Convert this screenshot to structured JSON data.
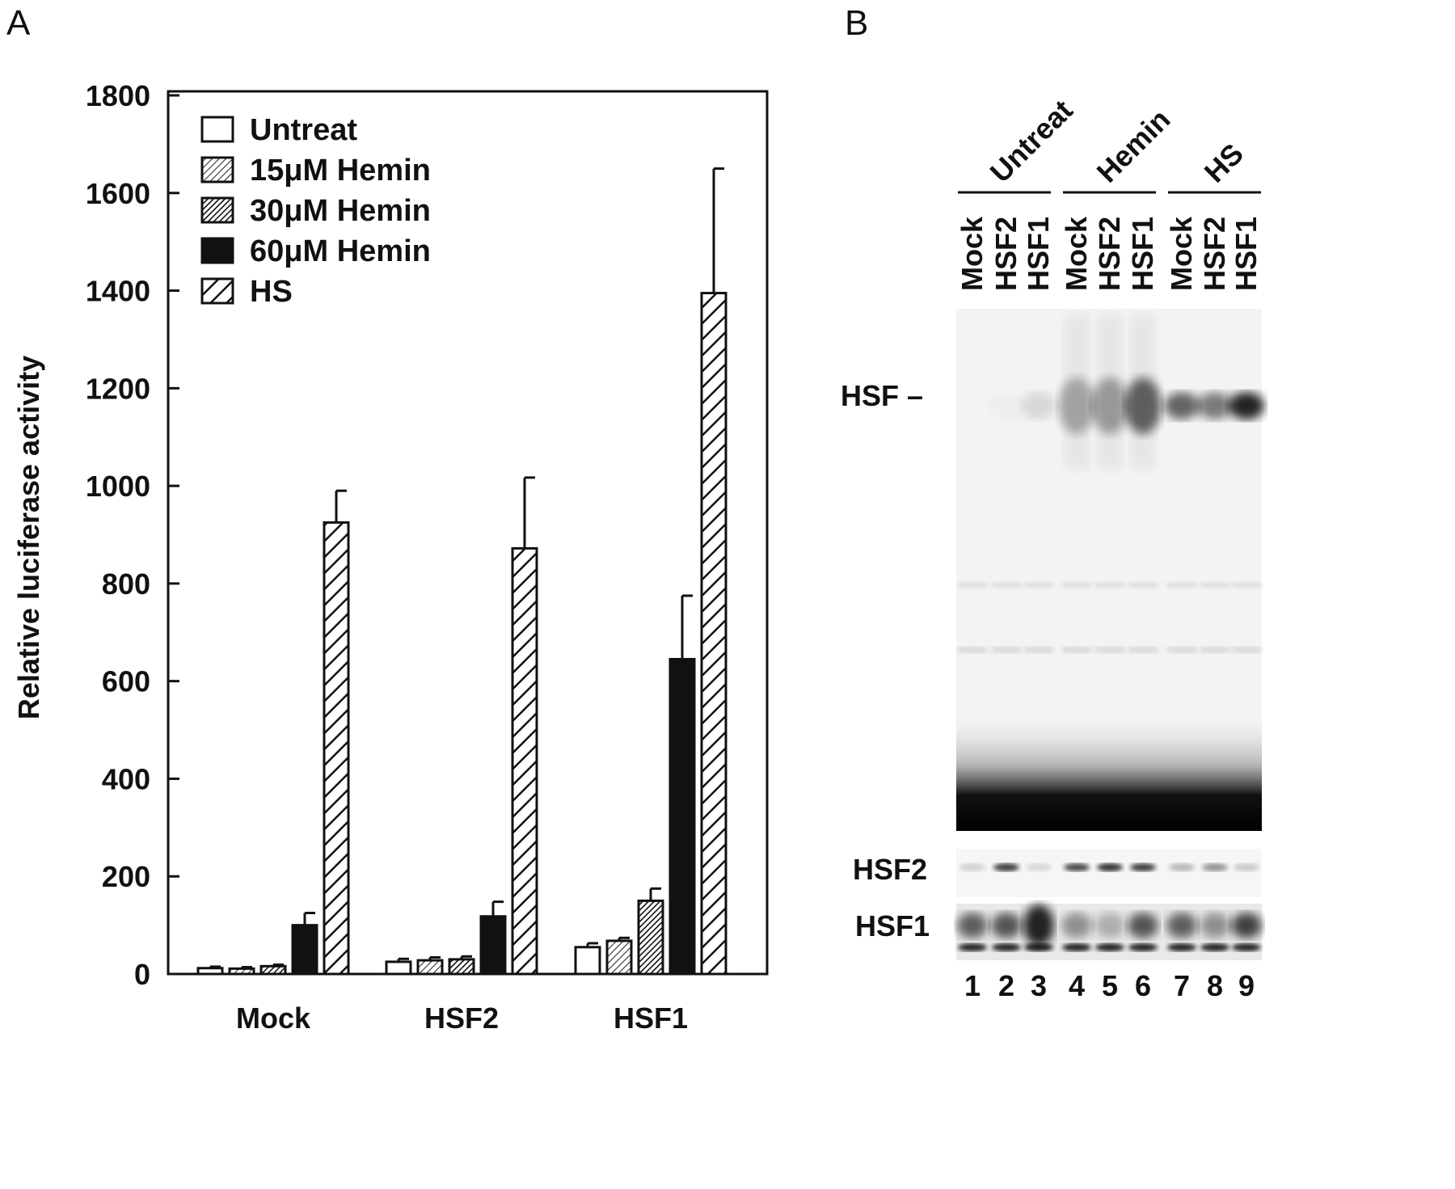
{
  "panels": {
    "a_label": "A",
    "b_label": "B"
  },
  "chart_data": {
    "type": "bar",
    "ylabel": "Relative luciferase activity",
    "xlabel": "",
    "ylim": [
      0,
      1800
    ],
    "yticks": [
      0,
      200,
      400,
      600,
      800,
      1000,
      1200,
      1400,
      1600,
      1800
    ],
    "categories": [
      "Mock",
      "HSF2",
      "HSF1"
    ],
    "legend_position": "top-left",
    "grid": false,
    "series": [
      {
        "name": "Untreat",
        "pattern": "open",
        "values": [
          12,
          25,
          55
        ],
        "errors": [
          3,
          6,
          8
        ]
      },
      {
        "name": "15μM Hemin",
        "pattern": "fine-hatch",
        "values": [
          11,
          28,
          68
        ],
        "errors": [
          3,
          6,
          6
        ]
      },
      {
        "name": "30μM Hemin",
        "pattern": "dense-hatch",
        "values": [
          16,
          30,
          150
        ],
        "errors": [
          3,
          6,
          25
        ]
      },
      {
        "name": "60μM Hemin",
        "pattern": "solid",
        "values": [
          100,
          118,
          645
        ],
        "errors": [
          25,
          30,
          130
        ]
      },
      {
        "name": "HS",
        "pattern": "wide-hatch",
        "values": [
          925,
          872,
          1395
        ],
        "errors": [
          65,
          145,
          255
        ]
      }
    ],
    "colors": {
      "bar_stroke": "#111111",
      "solid_fill": "#111111",
      "background": "#ffffff"
    }
  },
  "gel": {
    "group_labels": [
      "Untreat",
      "Hemin",
      "HS"
    ],
    "lane_labels": [
      "Mock",
      "HSF2",
      "HSF1",
      "Mock",
      "HSF2",
      "HSF1",
      "Mock",
      "HSF2",
      "HSF1"
    ],
    "band_label": "HSF –",
    "blot_labels": [
      "HSF2",
      "HSF1"
    ],
    "lane_numbers": [
      "1",
      "2",
      "3",
      "4",
      "5",
      "6",
      "7",
      "8",
      "9"
    ],
    "hsf_band_intensity": [
      0.0,
      0.02,
      0.12,
      0.35,
      0.4,
      0.7,
      0.65,
      0.55,
      0.95
    ],
    "hsf2_band_intensity": [
      0.15,
      0.75,
      0.12,
      0.7,
      0.8,
      0.75,
      0.25,
      0.4,
      0.18
    ],
    "hsf1_band_intensity": [
      0.7,
      0.75,
      1.0,
      0.45,
      0.3,
      0.75,
      0.7,
      0.45,
      0.85
    ]
  }
}
